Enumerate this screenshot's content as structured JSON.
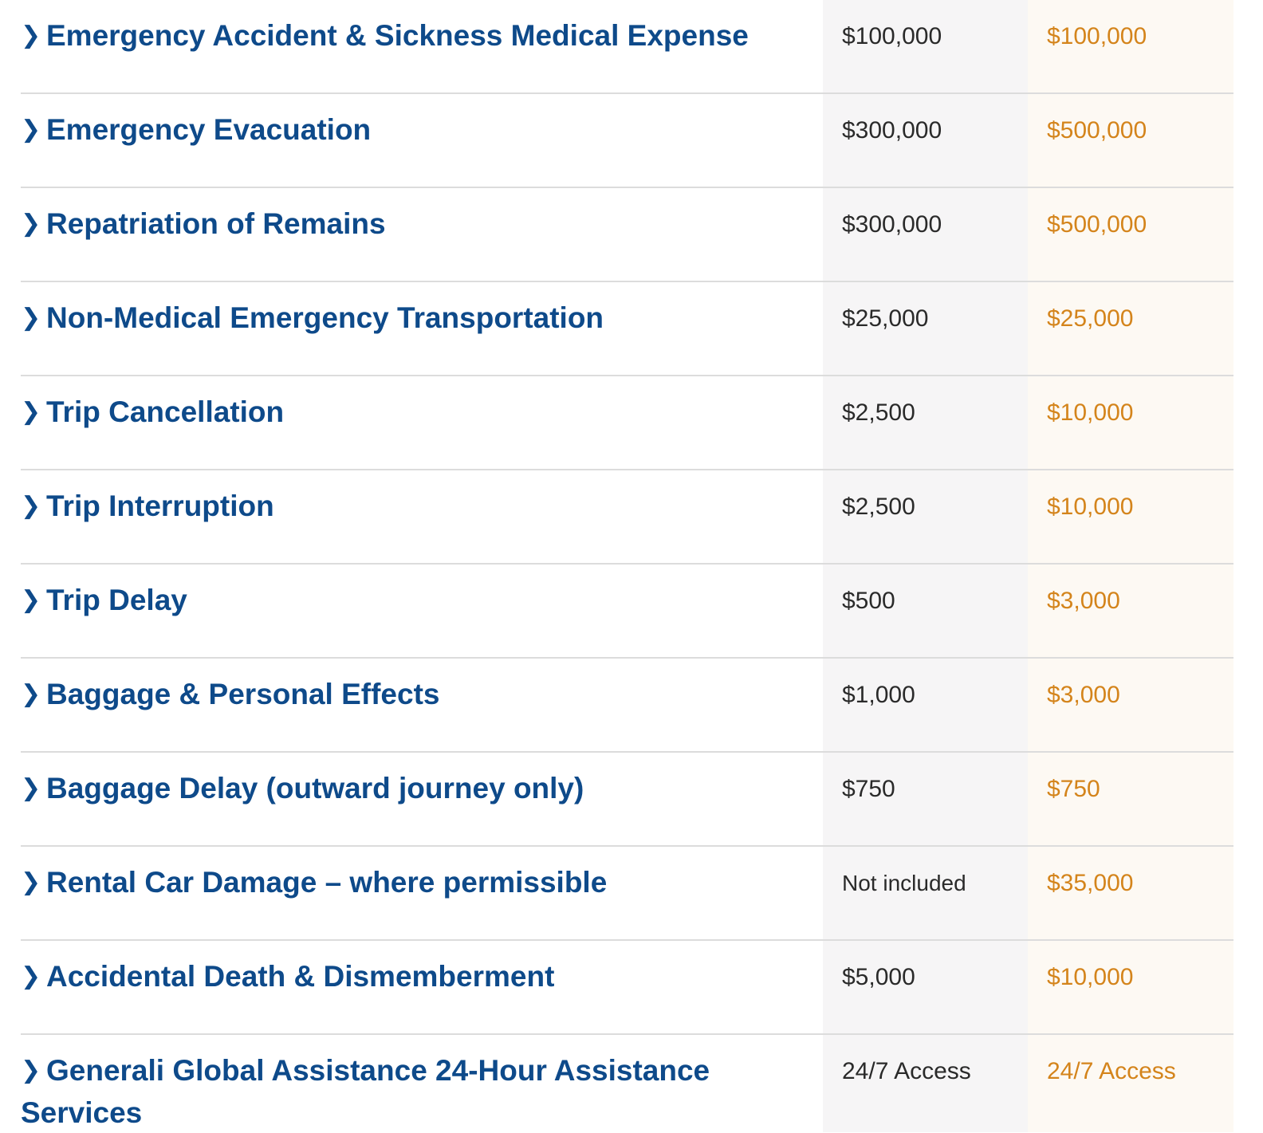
{
  "benefits": [
    {
      "label": "Emergency Accident & Sickness Medical Expense",
      "plan_a": "$100,000",
      "plan_b": "$100,000"
    },
    {
      "label": "Emergency Evacuation",
      "plan_a": "$300,000",
      "plan_b": "$500,000"
    },
    {
      "label": "Repatriation of Remains",
      "plan_a": "$300,000",
      "plan_b": "$500,000"
    },
    {
      "label": "Non-Medical Emergency Transportation",
      "plan_a": "$25,000",
      "plan_b": "$25,000"
    },
    {
      "label": "Trip Cancellation",
      "plan_a": "$2,500",
      "plan_b": "$10,000"
    },
    {
      "label": "Trip Interruption",
      "plan_a": "$2,500",
      "plan_b": "$10,000"
    },
    {
      "label": "Trip Delay",
      "plan_a": "$500",
      "plan_b": "$3,000"
    },
    {
      "label": "Baggage & Personal Effects",
      "plan_a": "$1,000",
      "plan_b": "$3,000"
    },
    {
      "label": "Baggage Delay (outward journey only)",
      "plan_a": "$750",
      "plan_b": "$750"
    },
    {
      "label": "Rental Car Damage – where permissible",
      "plan_a": "Not included",
      "plan_b": "$35,000"
    },
    {
      "label": "Accidental Death & Dismemberment",
      "plan_a": "$5,000",
      "plan_b": "$10,000"
    },
    {
      "label": "Generali Global Assistance 24-Hour Assistance Services",
      "plan_a": "24/7 Access",
      "plan_b": "24/7 Access"
    }
  ],
  "icons": {
    "expand": "chevron-right-icon"
  },
  "colors": {
    "benefit_text": "#0e4a8a",
    "plan_a_text": "#2a2a2a",
    "plan_b_text": "#d4841b",
    "plan_a_bg": "#f6f5f6",
    "plan_b_bg": "#fdf9f3"
  }
}
